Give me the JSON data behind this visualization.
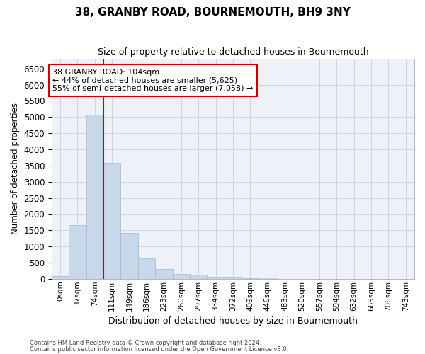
{
  "title": "38, GRANBY ROAD, BOURNEMOUTH, BH9 3NY",
  "subtitle": "Size of property relative to detached houses in Bournemouth",
  "xlabel": "Distribution of detached houses by size in Bournemouth",
  "ylabel": "Number of detached properties",
  "bar_color": "#c8d8ea",
  "bar_edge_color": "#a0b8d0",
  "categories": [
    "0sqm",
    "37sqm",
    "74sqm",
    "111sqm",
    "149sqm",
    "186sqm",
    "223sqm",
    "260sqm",
    "297sqm",
    "334sqm",
    "372sqm",
    "409sqm",
    "446sqm",
    "483sqm",
    "520sqm",
    "557sqm",
    "594sqm",
    "632sqm",
    "669sqm",
    "706sqm",
    "743sqm"
  ],
  "values": [
    75,
    1650,
    5075,
    3575,
    1425,
    620,
    295,
    155,
    120,
    70,
    50,
    10,
    30,
    5,
    3,
    2,
    1,
    1,
    0,
    0,
    0
  ],
  "ylim": [
    0,
    6800
  ],
  "yticks": [
    0,
    500,
    1000,
    1500,
    2000,
    2500,
    3000,
    3500,
    4000,
    4500,
    5000,
    5500,
    6000,
    6500
  ],
  "vline_x": 2.5,
  "vline_color": "#cc0000",
  "property_label": "38 GRANBY ROAD: 104sqm",
  "annotation_line1": "← 44% of detached houses are smaller (5,625)",
  "annotation_line2": "55% of semi-detached houses are larger (7,058) →",
  "grid_color": "#ccd5e4",
  "plot_bg_color": "#eef2f8",
  "footer1": "Contains HM Land Registry data © Crown copyright and database right 2024.",
  "footer2": "Contains public sector information licensed under the Open Government Licence v3.0."
}
